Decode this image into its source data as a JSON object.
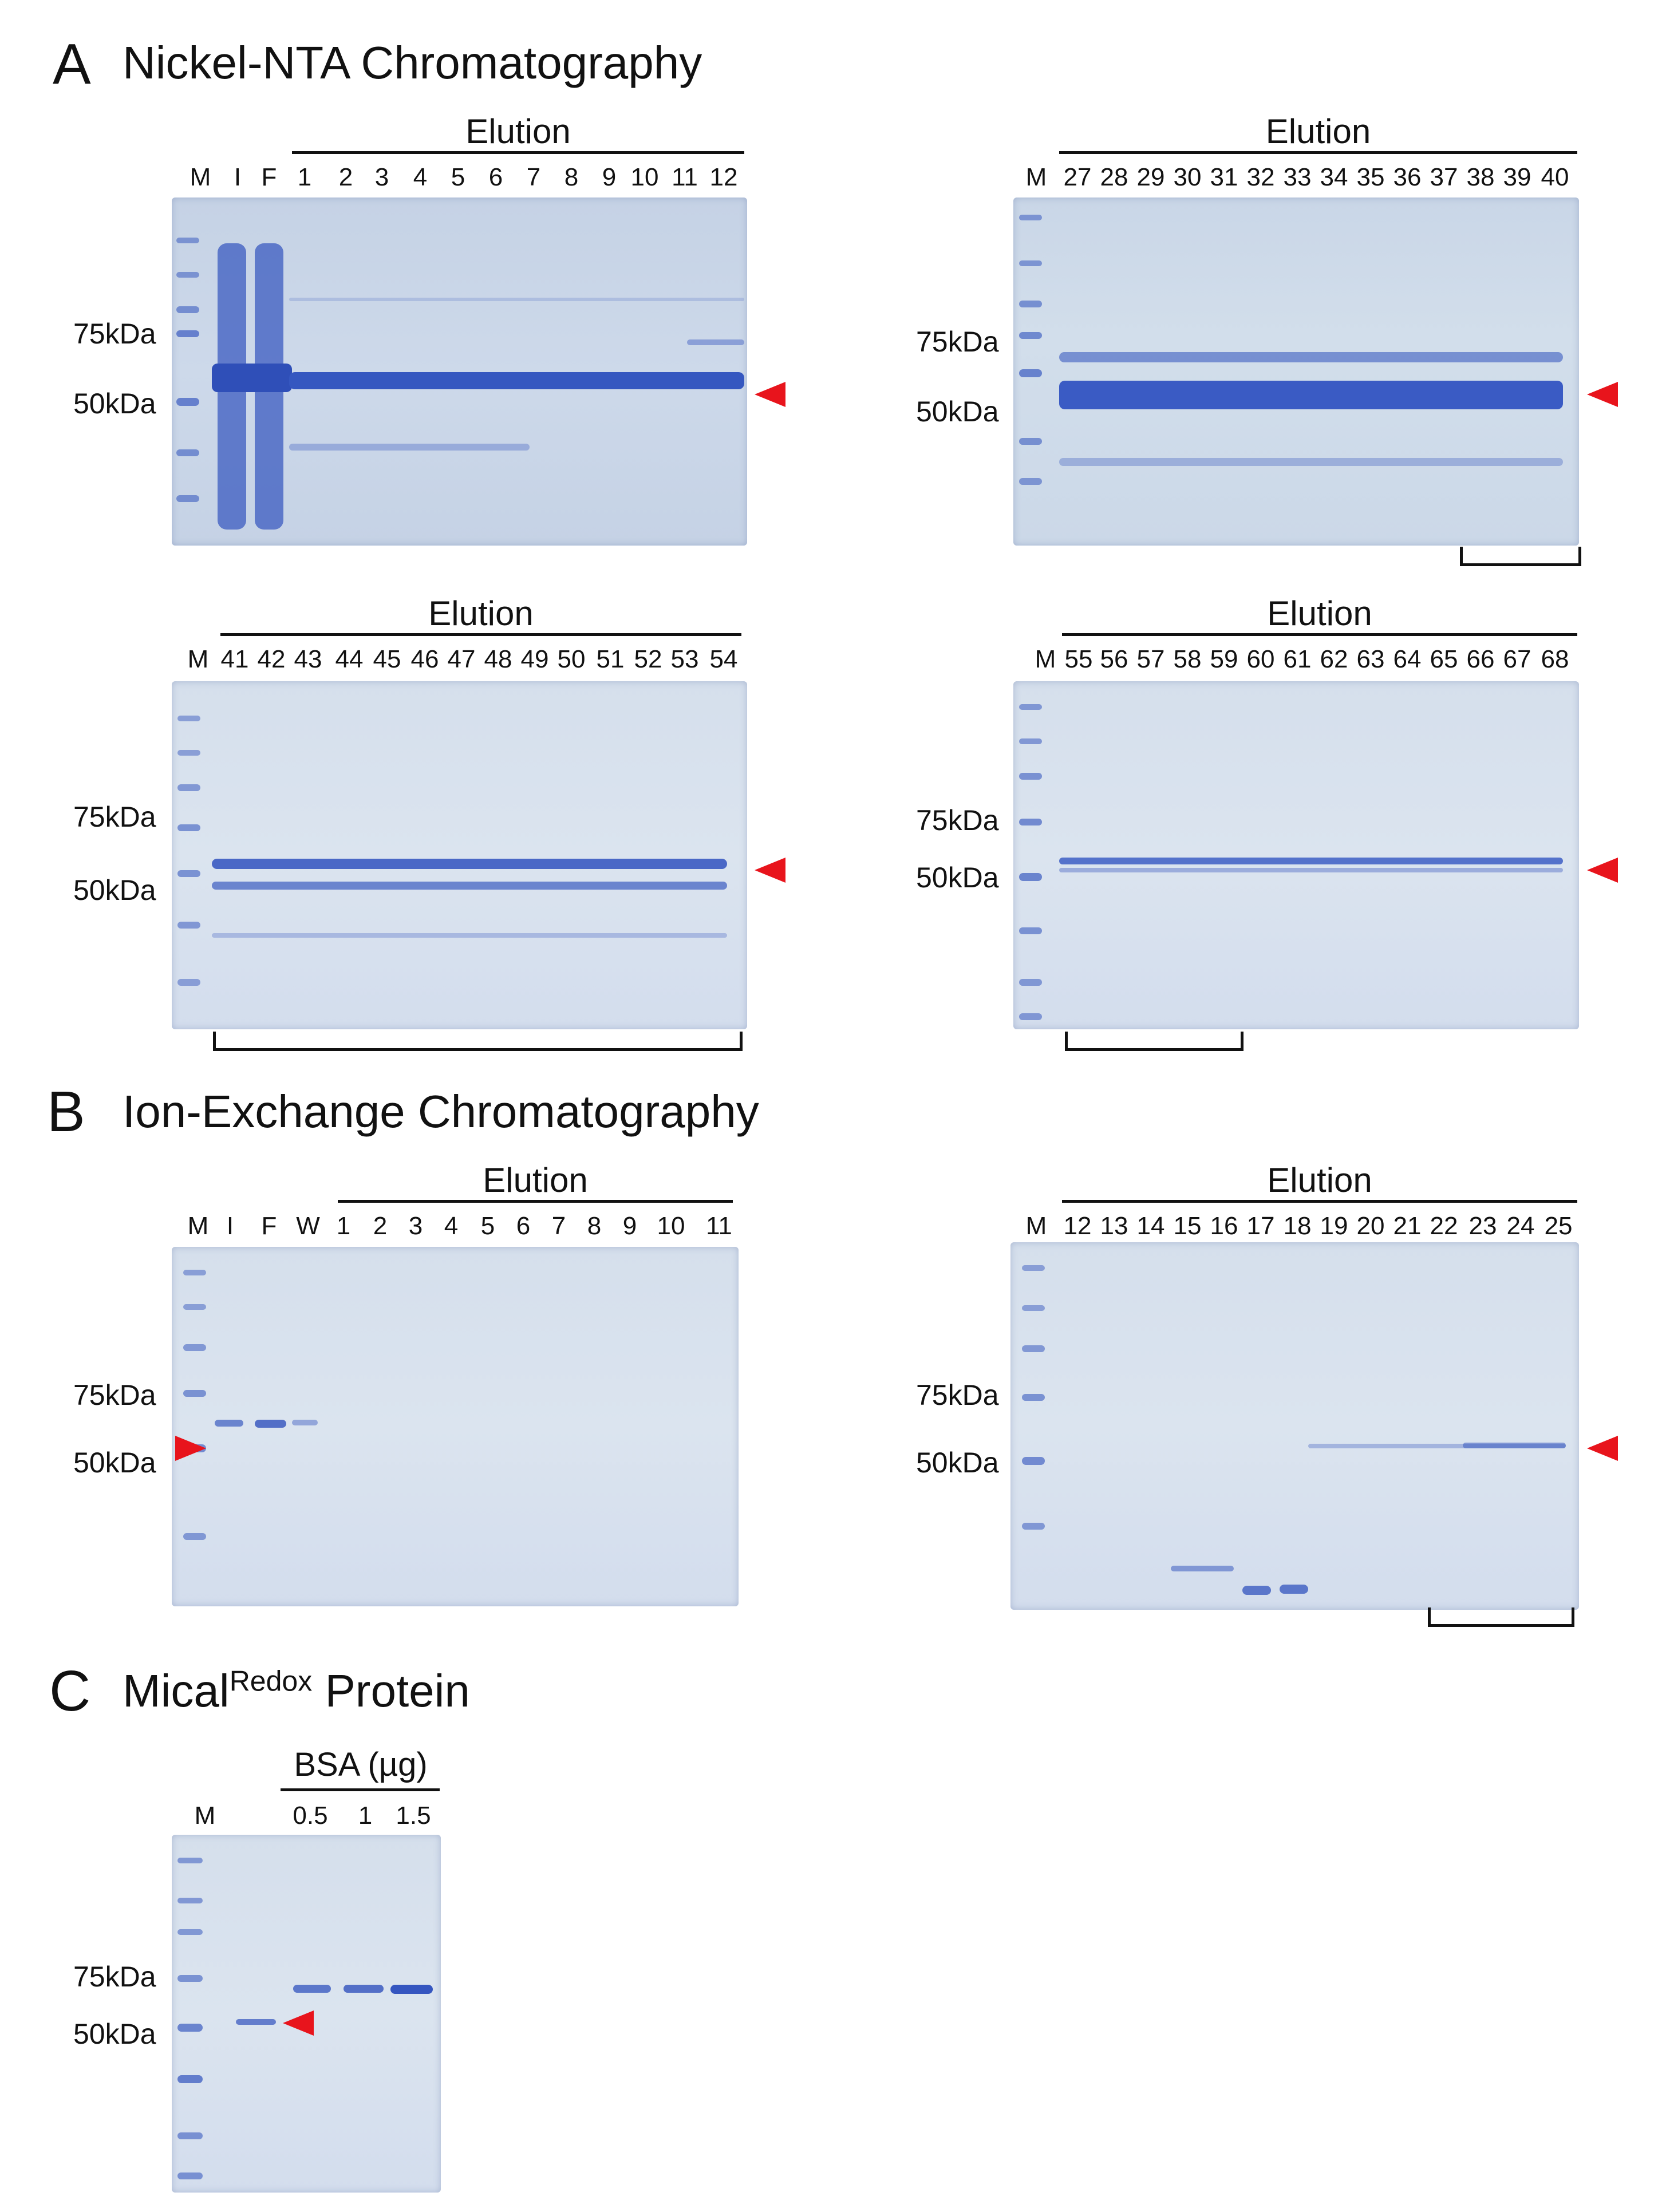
{
  "colors": {
    "marker_arrow": "#e8141c",
    "band": "#3b5bc0",
    "gel_bg": "#cbd8e8"
  },
  "sectionA": {
    "letter": "A",
    "title": "Nickel-NTA Chromatography",
    "gel1": {
      "elution": "Elution",
      "lanes": [
        "M",
        "I",
        "F",
        "1",
        "2",
        "3",
        "4",
        "5",
        "6",
        "7",
        "8",
        "9",
        "10",
        "11",
        "12"
      ],
      "kda_top": "75kDa",
      "kda_bottom": "50kDa"
    },
    "gel2": {
      "elution": "Elution",
      "lanes": [
        "M",
        "27",
        "28",
        "29",
        "30",
        "31",
        "32",
        "33",
        "34",
        "35",
        "36",
        "37",
        "38",
        "39",
        "40"
      ],
      "kda_top": "75kDa",
      "kda_bottom": "50kDa"
    },
    "gel3": {
      "elution": "Elution",
      "lanes": [
        "M",
        "41",
        "42",
        "43",
        "44",
        "45",
        "46",
        "47",
        "48",
        "49",
        "50",
        "51",
        "52",
        "53",
        "54"
      ],
      "kda_top": "75kDa",
      "kda_bottom": "50kDa"
    },
    "gel4": {
      "elution": "Elution",
      "lanes": [
        "M",
        "55",
        "56",
        "57",
        "58",
        "59",
        "60",
        "61",
        "62",
        "63",
        "64",
        "65",
        "66",
        "67",
        "68"
      ],
      "kda_top": "75kDa",
      "kda_bottom": "50kDa"
    }
  },
  "sectionB": {
    "letter": "B",
    "title": "Ion-Exchange Chromatography",
    "gel1": {
      "elution": "Elution",
      "lanes": [
        "M",
        "I",
        "F",
        "W",
        "1",
        "2",
        "3",
        "4",
        "5",
        "6",
        "7",
        "8",
        "9",
        "10",
        "11"
      ],
      "kda_top": "75kDa",
      "kda_bottom": "50kDa"
    },
    "gel2": {
      "elution": "Elution",
      "lanes": [
        "M",
        "12",
        "13",
        "14",
        "15",
        "16",
        "17",
        "18",
        "19",
        "20",
        "21",
        "22",
        "23",
        "24",
        "25"
      ],
      "kda_top": "75kDa",
      "kda_bottom": "50kDa"
    }
  },
  "sectionC": {
    "letter": "C",
    "title_main": "Mical",
    "title_sup": "Redox",
    "title_rest": " Protein",
    "bsa_label": "BSA (µg)",
    "lanes": [
      "M",
      "0.5",
      "1",
      "1.5"
    ],
    "kda_top": "75kDa",
    "kda_bottom": "50kDa"
  }
}
